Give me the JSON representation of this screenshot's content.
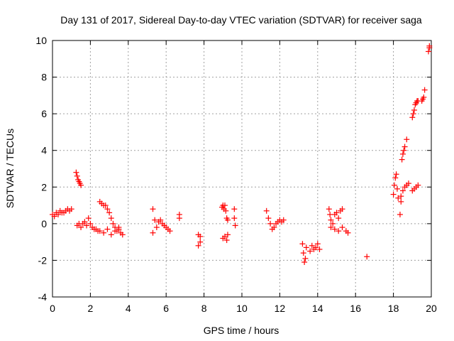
{
  "chart_data": {
    "type": "scatter",
    "title": "Day 131 of 2017, Sidereal Day-to-day VTEC variation (SDTVAR) for receiver saga",
    "xlabel": "GPS time / hours",
    "ylabel": "SDTVAR / TECUs",
    "xlim": [
      0,
      20
    ],
    "ylim": [
      -4,
      10
    ],
    "xticks": [
      0,
      2,
      4,
      6,
      8,
      10,
      12,
      14,
      16,
      18,
      20
    ],
    "yticks": [
      -4,
      -2,
      0,
      2,
      4,
      6,
      8,
      10
    ],
    "xtick_labels": [
      "0",
      "2",
      "4",
      "6",
      "8",
      "10",
      "12",
      "14",
      "16",
      "18",
      "20"
    ],
    "ytick_labels": [
      "-4",
      "-2",
      "0",
      "2",
      "4",
      "6",
      "8",
      "10"
    ],
    "grid": true,
    "marker": "+",
    "series": [
      {
        "name": "SDTVAR",
        "color": "#ff0000",
        "x": [
          0.0,
          0.1,
          0.2,
          0.3,
          0.4,
          0.5,
          0.6,
          0.7,
          0.8,
          0.9,
          1.0,
          1.25,
          1.3,
          1.35,
          1.4,
          1.45,
          1.5,
          1.3,
          1.4,
          1.5,
          1.6,
          1.7,
          1.8,
          1.9,
          2.0,
          2.1,
          2.2,
          2.3,
          2.4,
          2.5,
          2.6,
          2.7,
          2.8,
          2.9,
          3.0,
          3.1,
          3.2,
          3.3,
          3.4,
          3.5,
          3.6,
          3.7,
          2.5,
          2.7,
          2.9,
          3.1,
          3.3,
          3.5,
          5.3,
          5.3,
          5.4,
          5.5,
          5.6,
          5.7,
          5.8,
          5.9,
          6.0,
          6.1,
          6.2,
          6.7,
          6.7,
          7.7,
          7.7,
          7.8,
          7.8,
          8.95,
          9.0,
          9.05,
          9.1,
          9.15,
          9.2,
          9.25,
          9.0,
          9.1,
          9.2,
          9.25,
          9.6,
          9.6,
          9.65,
          11.3,
          11.4,
          11.5,
          11.6,
          11.7,
          11.8,
          11.9,
          12.0,
          12.1,
          12.2,
          13.2,
          13.25,
          13.3,
          13.35,
          13.4,
          13.6,
          13.7,
          13.8,
          13.9,
          14.0,
          14.1,
          14.6,
          14.65,
          14.7,
          14.8,
          14.9,
          15.0,
          15.1,
          15.2,
          15.3,
          14.7,
          14.9,
          15.1,
          15.3,
          15.5,
          15.6,
          16.6,
          18.0,
          18.05,
          18.1,
          18.15,
          18.2,
          18.25,
          18.35,
          18.4,
          18.45,
          18.5,
          18.55,
          18.6,
          18.7,
          18.4,
          18.5,
          18.6,
          18.7,
          18.8,
          19.0,
          19.05,
          19.1,
          19.15,
          19.2,
          19.25,
          19.3,
          19.0,
          19.1,
          19.2,
          19.3,
          19.5,
          19.55,
          19.6,
          19.65,
          19.85,
          19.9,
          19.9
        ],
        "y": [
          0.5,
          0.4,
          0.6,
          0.5,
          0.7,
          0.6,
          0.6,
          0.7,
          0.8,
          0.7,
          0.8,
          2.8,
          2.6,
          2.4,
          2.3,
          2.2,
          2.1,
          -0.1,
          0.0,
          -0.2,
          0.0,
          0.1,
          -0.1,
          0.3,
          0.0,
          -0.2,
          -0.3,
          -0.3,
          -0.4,
          1.2,
          1.1,
          1.0,
          1.0,
          0.8,
          0.6,
          0.3,
          0.0,
          -0.2,
          -0.4,
          -0.2,
          -0.5,
          -0.6,
          -0.4,
          -0.5,
          -0.3,
          -0.6,
          -0.4,
          -0.3,
          0.8,
          -0.5,
          0.2,
          -0.2,
          0.1,
          0.2,
          0.0,
          -0.1,
          -0.2,
          -0.3,
          -0.4,
          0.5,
          0.3,
          -0.6,
          -1.2,
          -0.7,
          -1.0,
          0.9,
          1.0,
          0.8,
          1.0,
          0.7,
          0.3,
          0.2,
          -0.8,
          -0.7,
          -0.9,
          -0.6,
          0.8,
          0.3,
          -0.1,
          0.7,
          0.3,
          0.0,
          -0.3,
          -0.2,
          0.0,
          0.1,
          0.2,
          0.1,
          0.2,
          -1.1,
          -1.6,
          -2.1,
          -1.9,
          -1.3,
          -1.5,
          -1.2,
          -1.4,
          -1.3,
          -1.1,
          -1.4,
          0.8,
          0.5,
          0.2,
          0.0,
          0.5,
          0.6,
          0.3,
          0.7,
          0.8,
          -0.2,
          -0.3,
          -0.4,
          -0.2,
          -0.4,
          -0.5,
          -1.8,
          1.6,
          2.1,
          2.5,
          2.7,
          1.9,
          1.4,
          0.5,
          1.2,
          3.5,
          3.8,
          4.0,
          4.2,
          4.6,
          1.5,
          1.8,
          2.0,
          2.1,
          2.2,
          5.8,
          6.0,
          6.2,
          6.5,
          6.6,
          6.7,
          6.7,
          1.8,
          1.9,
          2.0,
          2.1,
          6.7,
          6.8,
          6.9,
          7.3,
          9.4,
          9.6,
          9.7
        ]
      }
    ]
  }
}
